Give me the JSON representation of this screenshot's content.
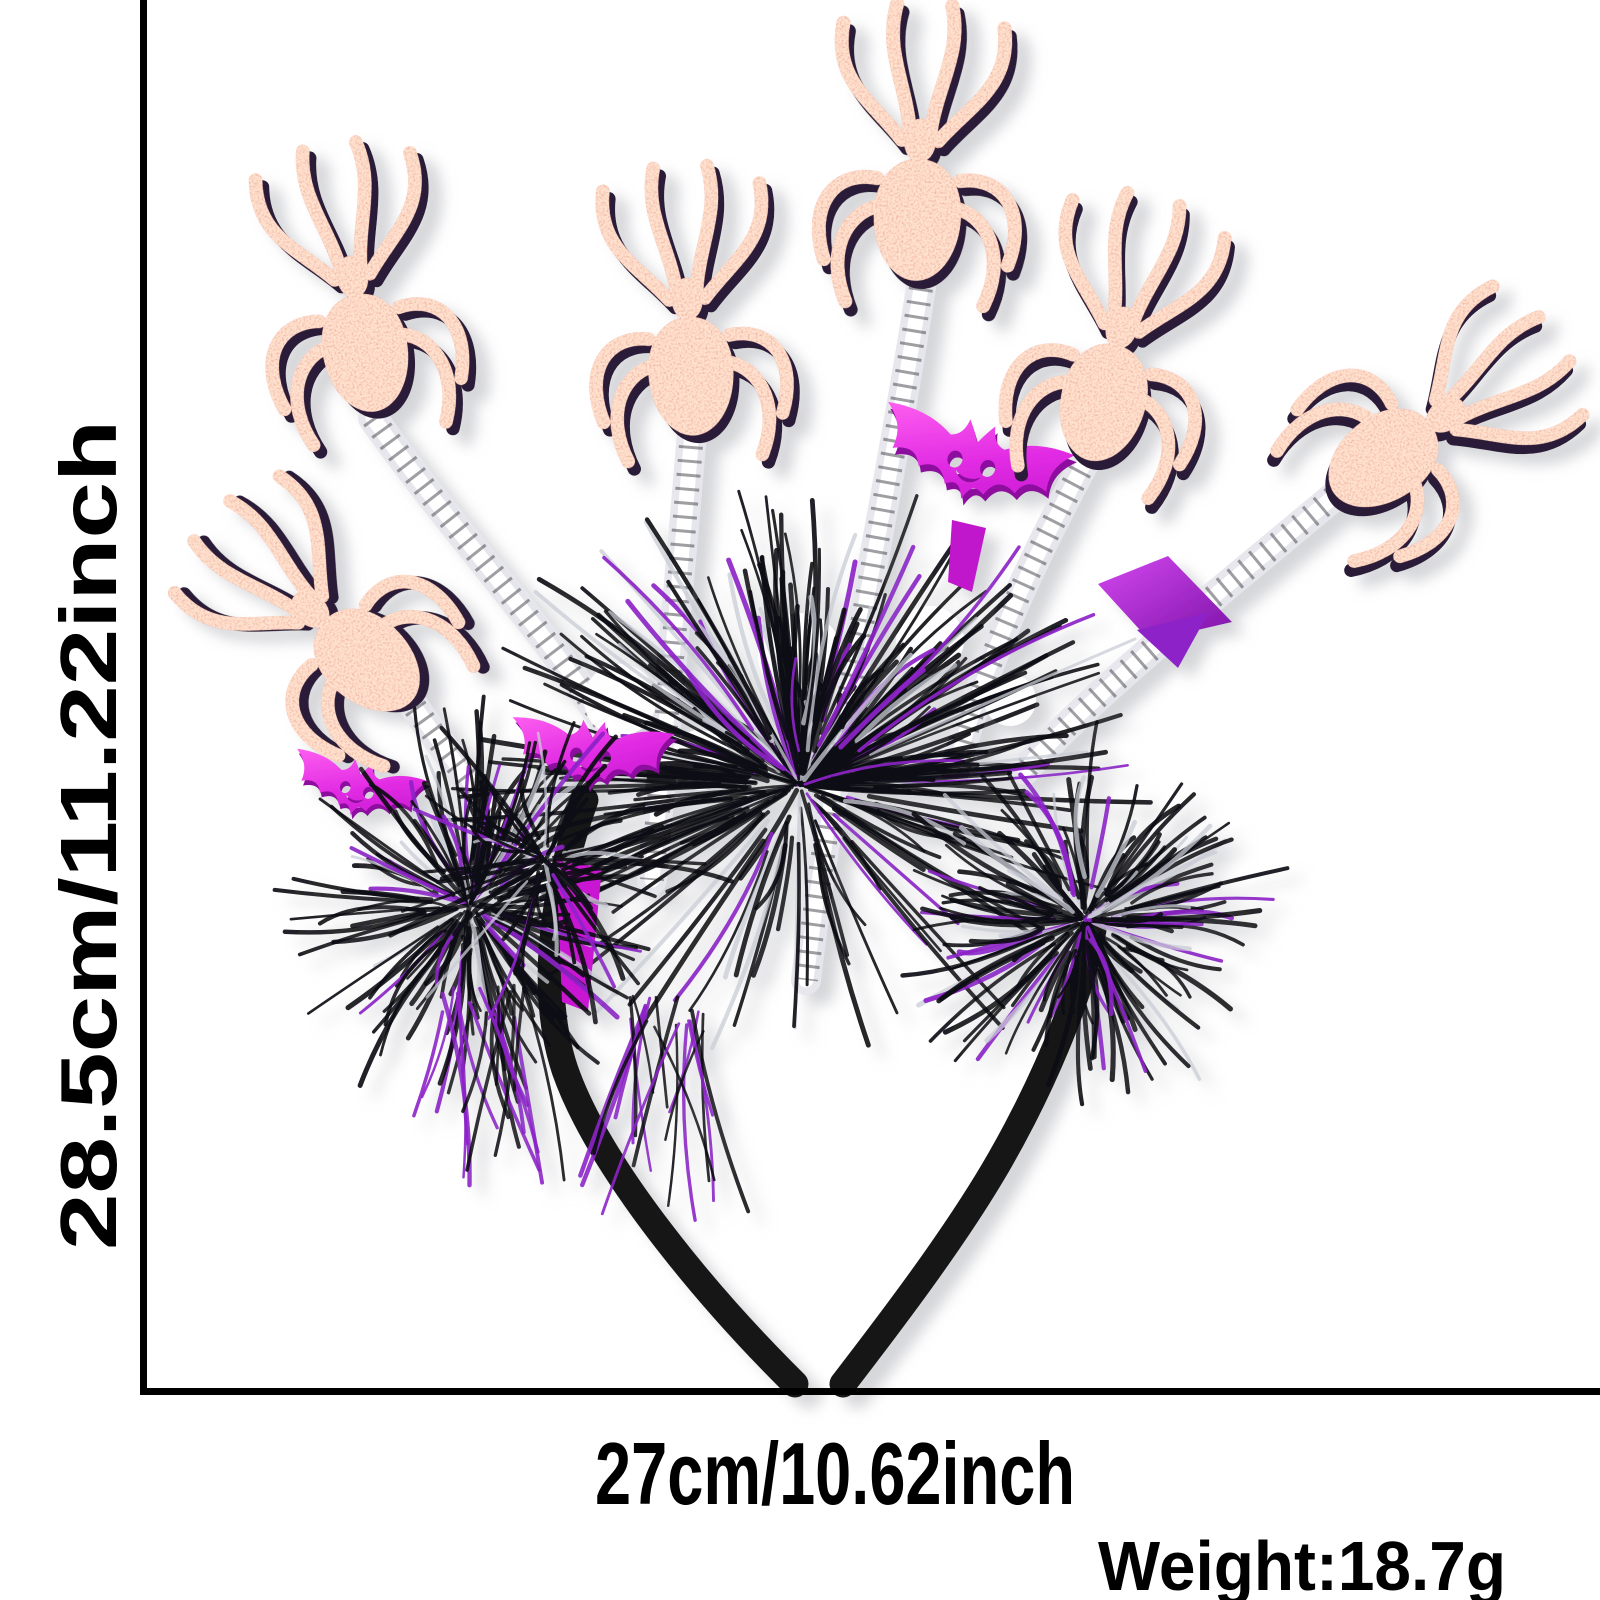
{
  "page": {
    "background_color": "#ffffff"
  },
  "dimension_annotations": {
    "height_label": "28.5cm/11.22inch",
    "width_label": "27cm/10.62inch",
    "weight_label": "Weight:18.7g",
    "line_color": "#000000",
    "text_color": "#000000"
  },
  "product_illustration": {
    "spider_count": 6,
    "bat_sequin_count": 3,
    "colors": {
      "spider_red": "#d8290f",
      "spider_backing": "#2a1b38",
      "bat_magenta_light": "#ff62f0",
      "bat_magenta": "#e22ce4",
      "bat_magenta_dark": "#c013cc",
      "bat_backing": "#8c0f9e",
      "foil_purple_light": "#d447f0",
      "foil_purple_dark": "#7d14a8",
      "tinsel_black": "#0e0e14",
      "tinsel_purple": "#8d22c8",
      "tinsel_silver": "#caccd6",
      "band_black": "#161616",
      "stem_fuzz": "#e6e6ec",
      "stem_core": "#ffffff",
      "stem_speckle": "#2a2a33",
      "soft_shadow": "#b9bac0"
    }
  }
}
